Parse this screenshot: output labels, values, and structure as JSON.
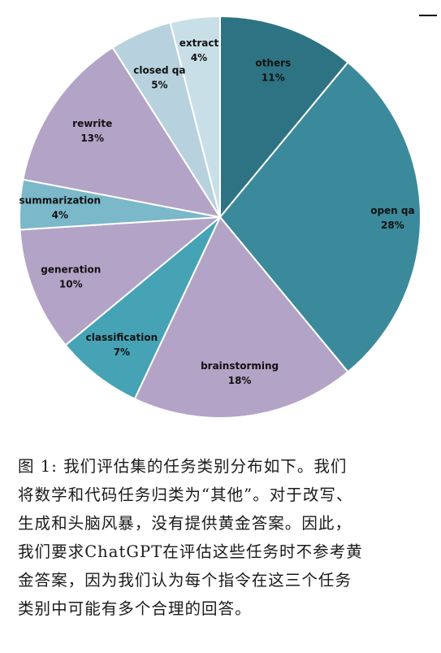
{
  "chart_data": {
    "type": "pie",
    "start_angle_deg": 0,
    "direction": "clockwise",
    "slices": [
      {
        "label": "others",
        "value": 11,
        "pct_text": "11%",
        "color": "#2e7383"
      },
      {
        "label": "open qa",
        "value": 28,
        "pct_text": "28%",
        "color": "#3b8a9b"
      },
      {
        "label": "brainstorming",
        "value": 18,
        "pct_text": "18%",
        "color": "#b3a3c6"
      },
      {
        "label": "classification",
        "value": 7,
        "pct_text": "7%",
        "color": "#46a3b6"
      },
      {
        "label": "generation",
        "value": 10,
        "pct_text": "10%",
        "color": "#b3a3c6"
      },
      {
        "label": "summarization",
        "value": 4,
        "pct_text": "4%",
        "color": "#7ab8ca"
      },
      {
        "label": "rewrite",
        "value": 13,
        "pct_text": "13%",
        "color": "#b3a3c6"
      },
      {
        "label": "closed qa",
        "value": 5,
        "pct_text": "5%",
        "color": "#b7d2de"
      },
      {
        "label": "extract",
        "value": 4,
        "pct_text": "4%",
        "color": "#c9dfe7"
      }
    ]
  },
  "caption": {
    "lines": [
      "图 1: 我们评估集的任务类别分布如下。我们",
      "将数学和代码任务归类为“其他”。对于改写、",
      "生成和头脑风暴，没有提供黄金答案。因此，",
      "我们要求ChatGPT在评估这些任务时不参考黄",
      "金答案，因为我们认为每个指令在这三个任务",
      "类别中可能有多个合理的回答。"
    ]
  }
}
